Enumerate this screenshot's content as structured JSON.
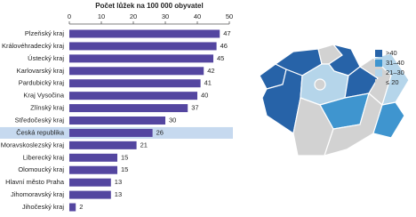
{
  "chart_data": {
    "type": "bar",
    "orientation": "horizontal",
    "title": "Počet lůžek na 100 000 obyvatel",
    "categories": [
      "Plzeňský kraj",
      "Královéhradecký kraj",
      "Ústecký kraj",
      "Karlovarský kraj",
      "Pardubický kraj",
      "Kraj Vysočina",
      "Zlínský kraj",
      "Středočeský kraj",
      "Česká republika",
      "Moravskoslezský kraj",
      "Liberecký kraj",
      "Olomoucký kraj",
      "Hlavní město Praha",
      "Jihomoravský kraj",
      "Jihočeský kraj"
    ],
    "values": [
      47,
      46,
      45,
      42,
      41,
      40,
      37,
      30,
      26,
      21,
      15,
      15,
      13,
      13,
      2
    ],
    "color": "#5446a0",
    "highlight": "Česká republika",
    "highlight_color": "#c6d9ef",
    "xlim": [
      0,
      50
    ],
    "xticks": [
      0,
      10,
      20,
      30,
      40,
      50
    ],
    "map_legend": [
      {
        "label": ">40",
        "color": "#2763a8"
      },
      {
        "label": "31–40",
        "color": "#3f95cf"
      },
      {
        "label": "21–30",
        "color": "#b5d5ea"
      },
      {
        "label": "≤ 20",
        "color": "#d2d2d2"
      }
    ]
  }
}
